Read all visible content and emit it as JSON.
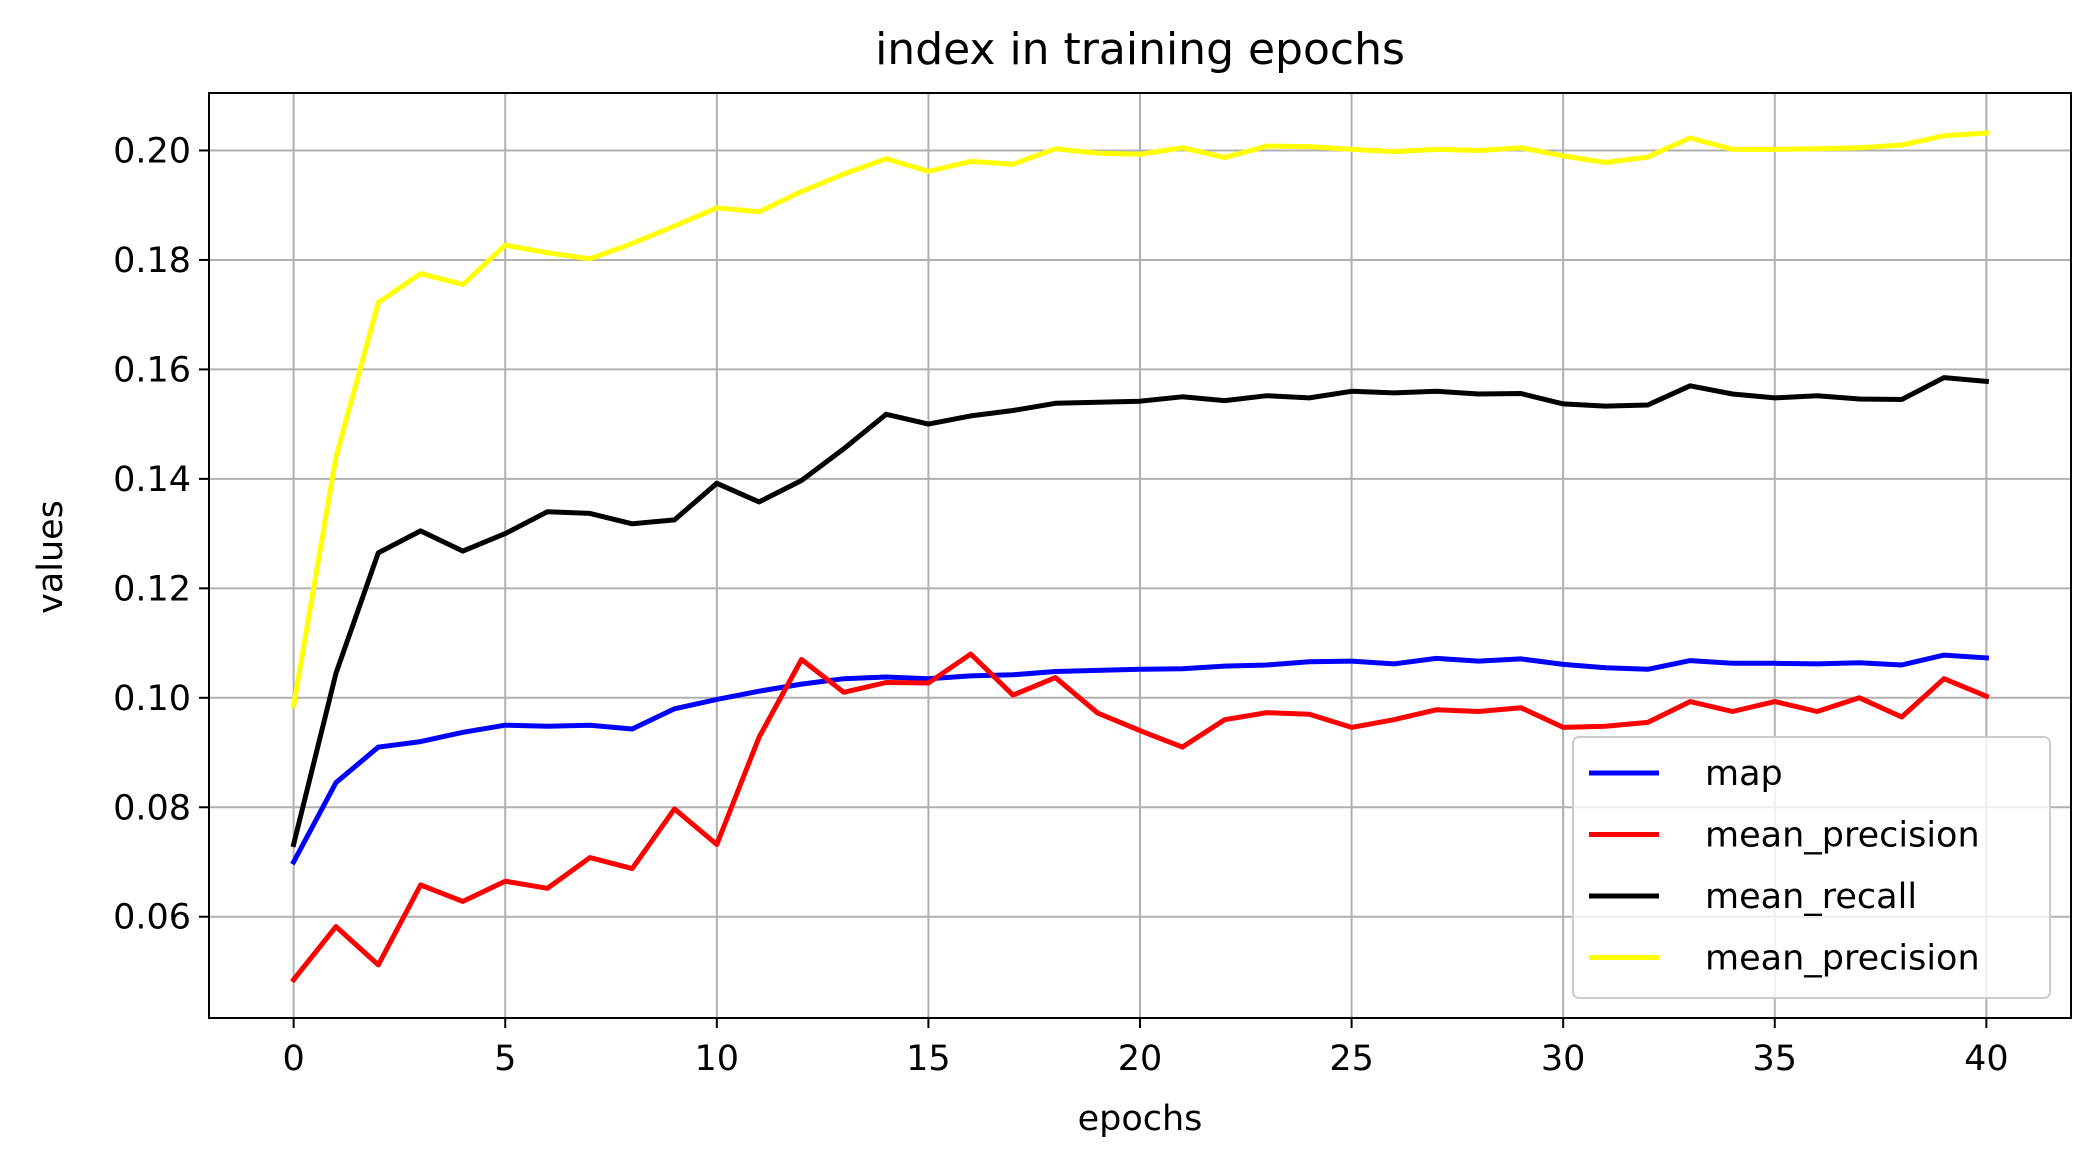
{
  "chart_data": {
    "type": "line",
    "title": "index in training epochs",
    "xlabel": "epochs",
    "ylabel": "values",
    "xlim": [
      -2,
      42
    ],
    "ylim": [
      0.0415,
      0.2105
    ],
    "xticks": [
      0,
      5,
      10,
      15,
      20,
      25,
      30,
      35,
      40
    ],
    "xtick_labels": [
      "0",
      "5",
      "10",
      "15",
      "20",
      "25",
      "30",
      "35",
      "40"
    ],
    "yticks": [
      0.06,
      0.08,
      0.1,
      0.12,
      0.14,
      0.16,
      0.18,
      0.2
    ],
    "ytick_labels": [
      "0.06",
      "0.08",
      "0.10",
      "0.12",
      "0.14",
      "0.16",
      "0.18",
      "0.20"
    ],
    "grid": true,
    "legend_position": "lower-right",
    "x": [
      0,
      1,
      2,
      3,
      4,
      5,
      6,
      7,
      8,
      9,
      10,
      11,
      12,
      13,
      14,
      15,
      16,
      17,
      18,
      19,
      20,
      21,
      22,
      23,
      24,
      25,
      26,
      27,
      28,
      29,
      30,
      31,
      32,
      33,
      34,
      35,
      36,
      37,
      38,
      39,
      40
    ],
    "series": [
      {
        "name": "map",
        "color": "#0000ff",
        "values": [
          0.07,
          0.0845,
          0.091,
          0.092,
          0.0937,
          0.095,
          0.0948,
          0.095,
          0.0943,
          0.098,
          0.0997,
          0.1012,
          0.1025,
          0.1035,
          0.1038,
          0.1035,
          0.104,
          0.1042,
          0.1048,
          0.105,
          0.1052,
          0.1053,
          0.1058,
          0.106,
          0.1066,
          0.1067,
          0.1062,
          0.1072,
          0.1067,
          0.1071,
          0.1061,
          0.1055,
          0.1052,
          0.1068,
          0.1063,
          0.1063,
          0.1062,
          0.1064,
          0.106,
          0.1078,
          0.1073
        ]
      },
      {
        "name": "mean_precision",
        "color": "#ff0000",
        "values": [
          0.0485,
          0.0582,
          0.0512,
          0.0658,
          0.0628,
          0.0665,
          0.0652,
          0.0708,
          0.0688,
          0.0797,
          0.0732,
          0.0928,
          0.107,
          0.101,
          0.1028,
          0.1027,
          0.108,
          0.1005,
          0.1037,
          0.0972,
          0.094,
          0.091,
          0.096,
          0.0973,
          0.097,
          0.0946,
          0.096,
          0.0978,
          0.0975,
          0.0982,
          0.0946,
          0.0948,
          0.0955,
          0.0993,
          0.0975,
          0.0993,
          0.0975,
          0.1,
          0.0965,
          0.1035,
          0.1003
        ]
      },
      {
        "name": "mean_recall",
        "color": "#000000",
        "values": [
          0.0732,
          0.1045,
          0.1265,
          0.1305,
          0.1268,
          0.13,
          0.134,
          0.1337,
          0.1318,
          0.1325,
          0.1392,
          0.1358,
          0.1397,
          0.1455,
          0.1518,
          0.15,
          0.1515,
          0.1525,
          0.1538,
          0.154,
          0.1542,
          0.155,
          0.1543,
          0.1552,
          0.1548,
          0.156,
          0.1557,
          0.156,
          0.1555,
          0.1556,
          0.1537,
          0.1533,
          0.1535,
          0.157,
          0.1555,
          0.1548,
          0.1552,
          0.1546,
          0.1545,
          0.1585,
          0.1578
        ]
      },
      {
        "name": "mean_precision",
        "color": "#ffff00",
        "values": [
          0.0985,
          0.144,
          0.1722,
          0.1775,
          0.1755,
          0.1827,
          0.1813,
          0.1802,
          0.183,
          0.1862,
          0.1895,
          0.1888,
          0.1925,
          0.1957,
          0.1985,
          0.1962,
          0.198,
          0.1975,
          0.2003,
          0.1995,
          0.1993,
          0.2005,
          0.1987,
          0.2008,
          0.2007,
          0.2002,
          0.1998,
          0.2002,
          0.2,
          0.2005,
          0.199,
          0.1978,
          0.1988,
          0.2023,
          0.2002,
          0.2002,
          0.2003,
          0.2005,
          0.201,
          0.2027,
          0.2032
        ]
      }
    ]
  }
}
